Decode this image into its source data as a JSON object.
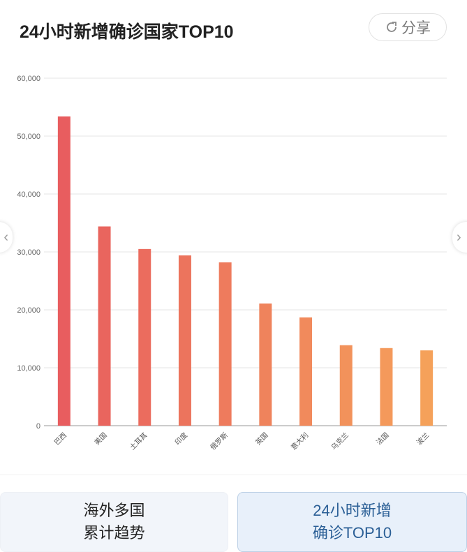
{
  "header": {
    "title": "24小时新增确诊国家TOP10",
    "share_label": "分享",
    "share_icon": "share-icon"
  },
  "chart_data": {
    "type": "bar",
    "title": "24小时新增确诊国家TOP10",
    "categories": [
      "巴西",
      "美国",
      "土耳其",
      "印度",
      "俄罗斯",
      "英国",
      "意大利",
      "乌克兰",
      "法国",
      "波兰"
    ],
    "values": [
      53400,
      34400,
      30500,
      29400,
      28200,
      21100,
      18700,
      13900,
      13400,
      13000
    ],
    "ylim": [
      0,
      60000
    ],
    "yticks": [
      "0",
      "10,000",
      "20,000",
      "30,000",
      "40,000",
      "50,000",
      "60,000"
    ],
    "grid": true,
    "colors": {
      "start": "#e85d5f",
      "end": "#f5a15a"
    }
  },
  "tabs": [
    {
      "line1": "海外多国",
      "line2": "累计趋势"
    },
    {
      "line1": "24小时新增",
      "line2": "确诊TOP10"
    }
  ]
}
